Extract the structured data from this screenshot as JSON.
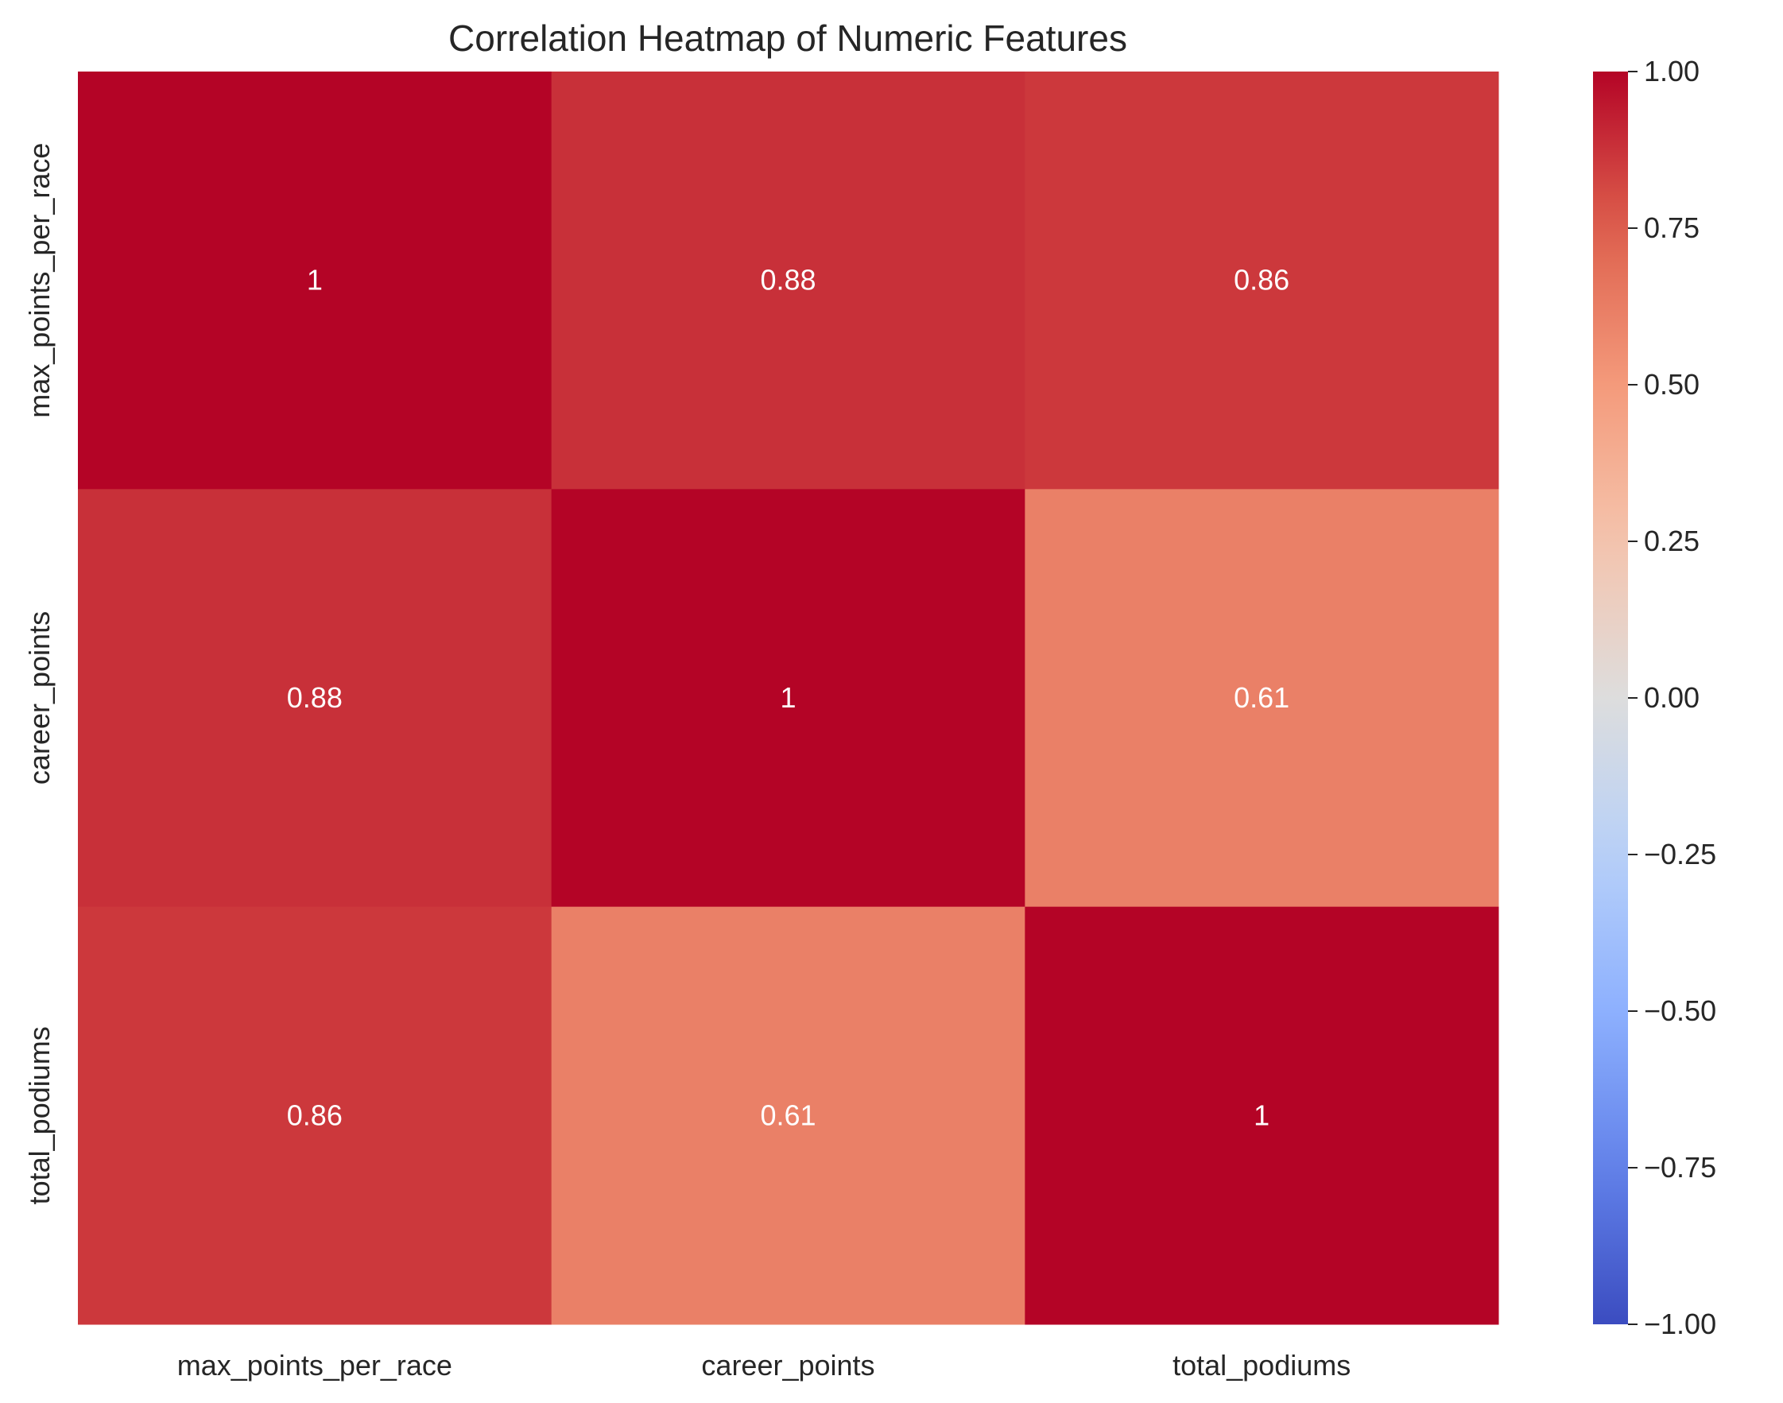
{
  "chart_data": {
    "type": "heatmap",
    "title": "Correlation Heatmap of Numeric Features",
    "xlabel": "",
    "ylabel": "",
    "x_categories": [
      "max_points_per_race",
      "career_points",
      "total_podiums"
    ],
    "y_categories": [
      "max_points_per_race",
      "career_points",
      "total_podiums"
    ],
    "values": [
      [
        1.0,
        0.88,
        0.86
      ],
      [
        0.88,
        1.0,
        0.61
      ],
      [
        0.86,
        0.61,
        1.0
      ]
    ],
    "annotations": [
      [
        "1",
        "0.88",
        "0.86"
      ],
      [
        "0.88",
        "1",
        "0.61"
      ],
      [
        "0.86",
        "0.61",
        "1"
      ]
    ],
    "colormap": "coolwarm",
    "vmin": -1.0,
    "vmax": 1.0,
    "colorbar": {
      "ticks": [
        1.0,
        0.75,
        0.5,
        0.25,
        0.0,
        -0.25,
        -0.5,
        -0.75,
        -1.0
      ],
      "tick_labels": [
        "1.00",
        "0.75",
        "0.50",
        "0.25",
        "0.00",
        "−0.25",
        "−0.50",
        "−0.75",
        "−1.00"
      ],
      "placement": "right"
    },
    "colors": {
      "low": "#3b4cc0",
      "mid": "#dddddd",
      "high": "#b40426"
    }
  }
}
